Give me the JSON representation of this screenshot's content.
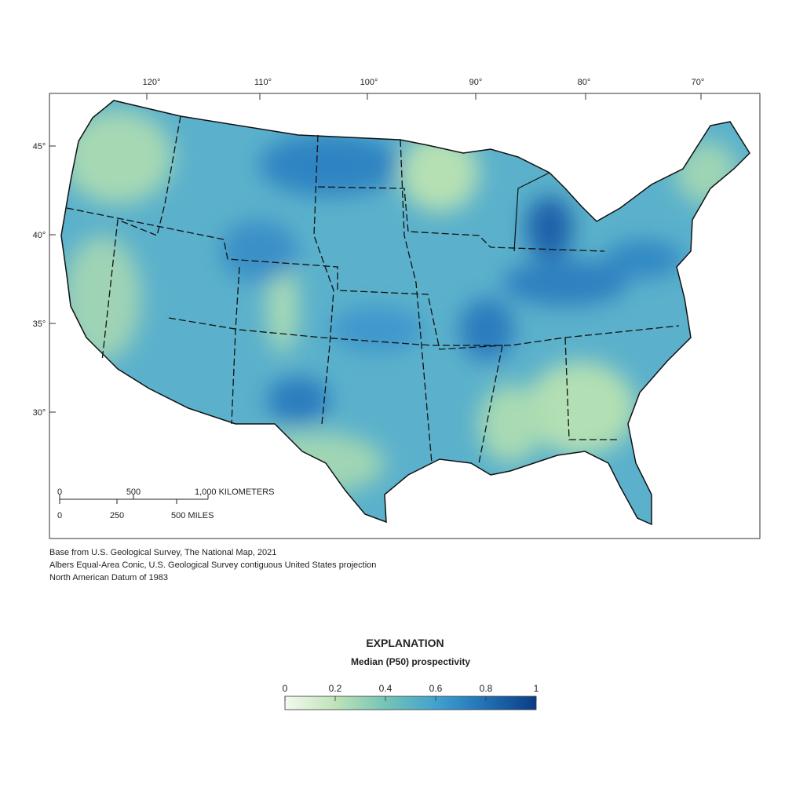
{
  "map": {
    "longitude_labels": [
      "120°",
      "110°",
      "100°",
      "90°",
      "80°",
      "70°"
    ],
    "latitude_labels": [
      "45°",
      "40°",
      "35°",
      "30°"
    ],
    "scale_bar": {
      "kilometers": [
        "0",
        "500",
        "1,000 KILOMETERS"
      ],
      "miles": [
        "0",
        "250",
        "500 MILES"
      ]
    },
    "credits": [
      "Base from U.S. Geological Survey, The National Map, 2021",
      "Albers Equal-Area Conic, U.S. Geological Survey contiguous United States projection",
      "North American Datum of 1983"
    ]
  },
  "legend": {
    "title": "EXPLANATION",
    "subtitle": "Median (P50) prospectivity",
    "range": [
      0,
      1
    ],
    "ticks": [
      0,
      0.2,
      0.4,
      0.6,
      0.8,
      1
    ],
    "colors": [
      "#f4f9ef",
      "#bfe3b8",
      "#74c4b6",
      "#41a2cf",
      "#2070b5",
      "#0b3c84"
    ]
  }
}
